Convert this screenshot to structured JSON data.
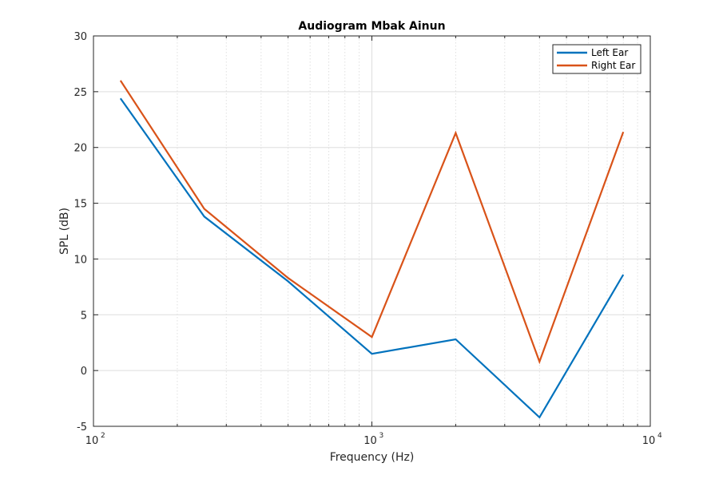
{
  "chart_data": {
    "type": "line",
    "title": "Audiogram Mbak Ainun",
    "xlabel": "Frequency (Hz)",
    "ylabel": "SPL (dB)",
    "xscale": "log",
    "xlim": [
      100,
      10000
    ],
    "ylim": [
      -5,
      30
    ],
    "x_tick_labels": [
      {
        "value": 100,
        "base": "10",
        "exp": "2"
      },
      {
        "value": 1000,
        "base": "10",
        "exp": "3"
      },
      {
        "value": 10000,
        "base": "10",
        "exp": "4"
      }
    ],
    "y_ticks": [
      -5,
      0,
      5,
      10,
      15,
      20,
      25,
      30
    ],
    "grid": true,
    "minor_grid": true,
    "legend_position": "top-right",
    "x": [
      125,
      250,
      500,
      1000,
      2000,
      4000,
      8000
    ],
    "series": [
      {
        "name": "Left Ear",
        "color": "#0072BD",
        "values": [
          24.4,
          13.8,
          8.0,
          1.5,
          2.8,
          -4.2,
          8.6
        ]
      },
      {
        "name": "Right Ear",
        "color": "#D95319",
        "values": [
          26.0,
          14.5,
          8.3,
          3.0,
          21.3,
          0.8,
          21.4
        ]
      }
    ]
  }
}
